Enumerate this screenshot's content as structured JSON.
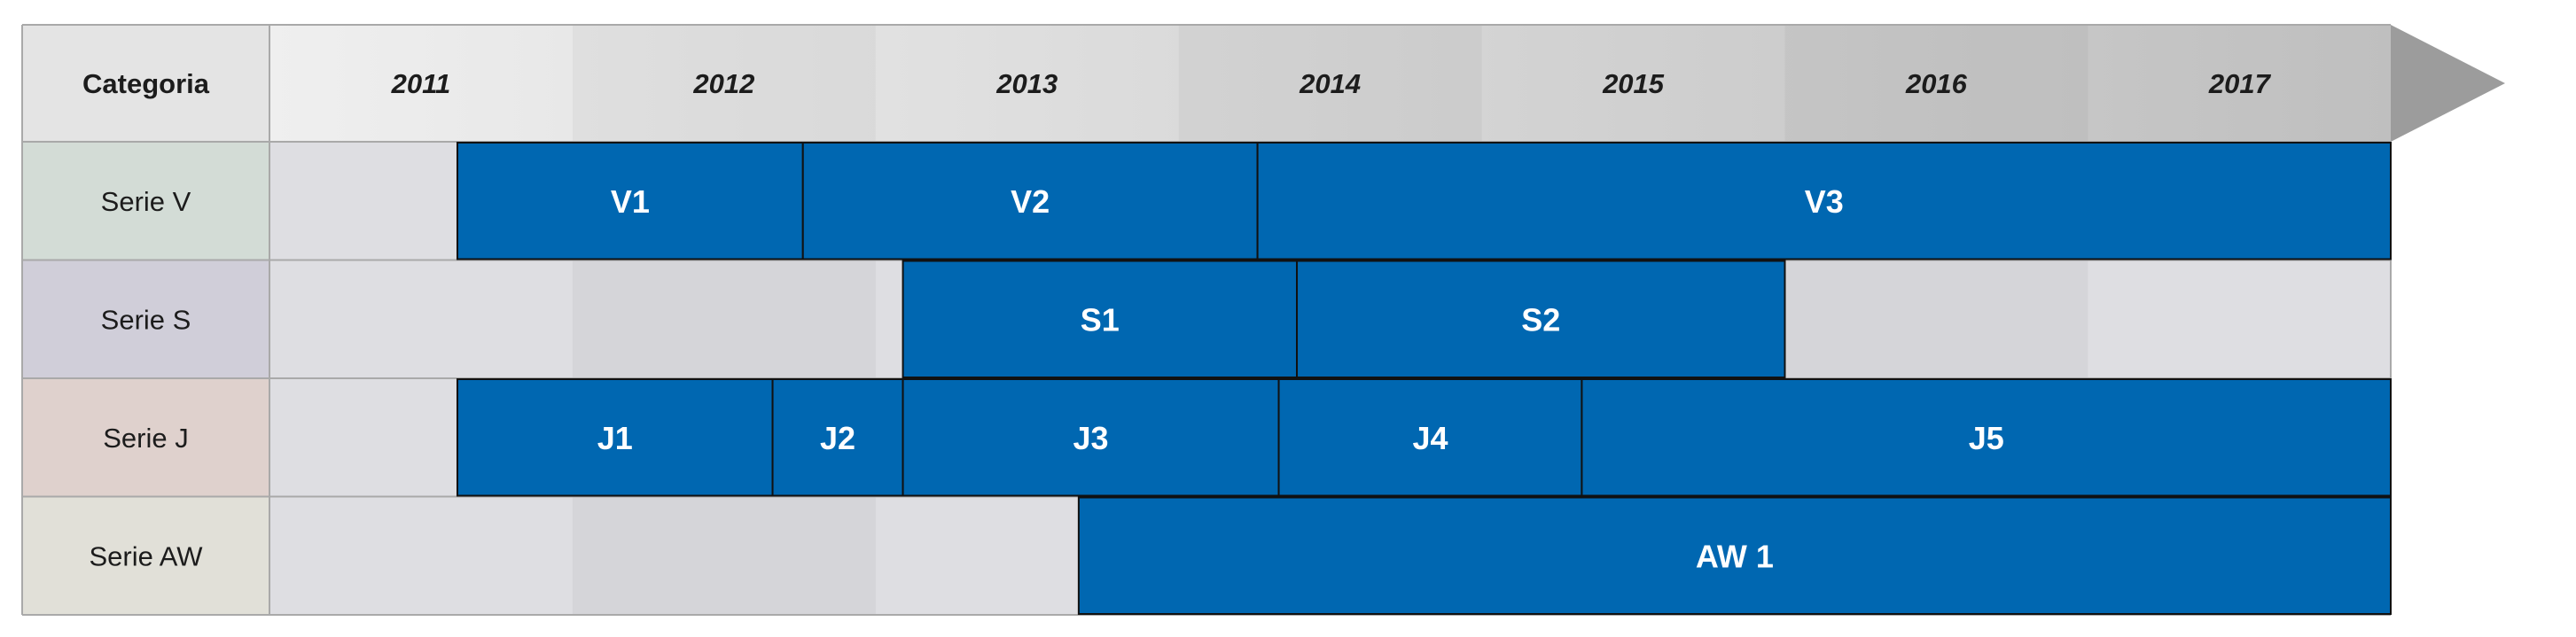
{
  "header": {
    "category_label": "Categoria",
    "years": [
      "2011",
      "2012",
      "2013",
      "2014",
      "2015",
      "2016",
      "2017"
    ]
  },
  "rows": [
    {
      "label": "Serie V",
      "tint": "#d3dcd6",
      "bars": [
        {
          "label": "V1",
          "start": 2011.62,
          "end": 2012.76
        },
        {
          "label": "V2",
          "start": 2012.76,
          "end": 2014.26
        },
        {
          "label": "V3",
          "start": 2014.26,
          "end": 2018.0
        }
      ]
    },
    {
      "label": "Serie S",
      "tint": "#d0ced9",
      "bars": [
        {
          "label": "S1",
          "start": 2013.09,
          "end": 2014.39
        },
        {
          "label": "S2",
          "start": 2014.39,
          "end": 2016.0
        }
      ]
    },
    {
      "label": "Serie J",
      "tint": "#dfd1cd",
      "bars": [
        {
          "label": "J1",
          "start": 2011.62,
          "end": 2012.66
        },
        {
          "label": "J2",
          "start": 2012.66,
          "end": 2013.09
        },
        {
          "label": "J3",
          "start": 2013.09,
          "end": 2014.33
        },
        {
          "label": "J4",
          "start": 2014.33,
          "end": 2015.33
        },
        {
          "label": "J5",
          "start": 2015.33,
          "end": 2018.0
        }
      ]
    },
    {
      "label": "Serie AW",
      "tint": "#e1e0d8",
      "bars": [
        {
          "label": "AW 1",
          "start": 2013.67,
          "end": 2018.0
        }
      ]
    }
  ],
  "colors": {
    "bar_fill": "#0067b1",
    "bar_border": "#111111",
    "grid_line": "#a9a9a9",
    "arrow": "#9c9c9c",
    "header_label_bg": "#e4e4e4"
  }
}
